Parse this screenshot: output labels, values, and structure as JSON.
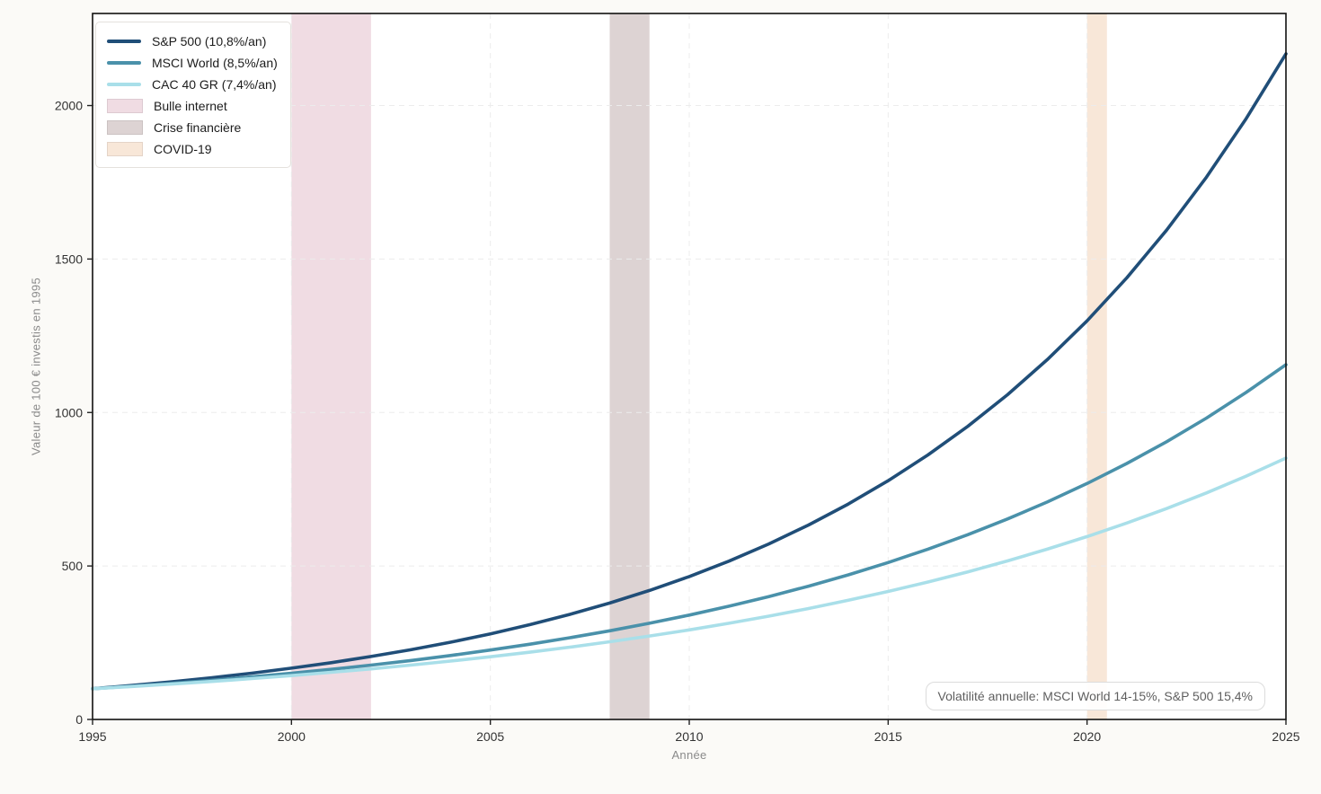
{
  "figure": {
    "background": "#fbfaf7",
    "plot_background": "#ffffff",
    "spine_color": "#111111",
    "grid_color": "#ececec",
    "tick_label_color": "#333333",
    "axis_label_color": "#8a8a8a"
  },
  "chart_data": {
    "type": "line",
    "title": "",
    "xlabel": "Année",
    "ylabel": "Valeur de 100 € investis en 1995",
    "xlim": [
      1995,
      2025
    ],
    "ylim": [
      0,
      2300
    ],
    "xticks": [
      1995,
      2000,
      2005,
      2010,
      2015,
      2020,
      2025
    ],
    "yticks": [
      0,
      500,
      1000,
      1500,
      2000
    ],
    "grid": "dashed-light",
    "legend_position": "upper-left",
    "x": [
      1995,
      1996,
      1997,
      1998,
      1999,
      2000,
      2001,
      2002,
      2003,
      2004,
      2005,
      2006,
      2007,
      2008,
      2009,
      2010,
      2011,
      2012,
      2013,
      2014,
      2015,
      2016,
      2017,
      2018,
      2019,
      2020,
      2021,
      2022,
      2023,
      2024,
      2025
    ],
    "series": [
      {
        "name": "S&P 500 (10,8%/an)",
        "annual_return_pct": "10,8",
        "color": "#204e78",
        "values": [
          100,
          110.8,
          122.8,
          136.0,
          150.7,
          167.0,
          185.0,
          205.0,
          227.2,
          251.7,
          278.9,
          309.0,
          342.4,
          379.3,
          420.3,
          465.7,
          516.0,
          571.7,
          633.5,
          701.9,
          777.7,
          861.7,
          954.7,
          1057.9,
          1172.1,
          1298.7,
          1438.9,
          1594.3,
          1766.5,
          1957.3,
          2168.7
        ]
      },
      {
        "name": "MSCI World (8,5%/an)",
        "annual_return_pct": "8,5",
        "color": "#4a91aa",
        "values": [
          100,
          108.5,
          117.7,
          127.7,
          138.6,
          150.4,
          163.2,
          177.0,
          192.1,
          208.4,
          226.1,
          245.3,
          266.2,
          288.8,
          313.3,
          340.0,
          368.9,
          400.2,
          434.3,
          471.2,
          511.2,
          554.7,
          601.8,
          653.0,
          708.5,
          768.7,
          834.0,
          904.9,
          981.8,
          1065.3,
          1155.8
        ]
      },
      {
        "name": "CAC 40 GR (7,4%/an)",
        "annual_return_pct": "7,4",
        "color": "#a9dfe9",
        "values": [
          100,
          107.4,
          115.4,
          123.9,
          133.1,
          142.9,
          153.5,
          164.8,
          177.0,
          190.1,
          204.2,
          219.3,
          235.5,
          253.0,
          271.7,
          291.8,
          313.4,
          336.6,
          361.5,
          388.2,
          417.0,
          447.8,
          480.9,
          516.5,
          554.8,
          595.8,
          639.9,
          687.2,
          738.1,
          792.7,
          851.4
        ]
      }
    ],
    "bands": [
      {
        "label": "Bulle internet",
        "from": 2000,
        "to": 2002,
        "color": "#f0dce3"
      },
      {
        "label": "Crise financière",
        "from": 2008,
        "to": 2009,
        "color": "#ddd3d3"
      },
      {
        "label": "COVID-19",
        "from": 2020,
        "to": 2020.5,
        "color": "#f8e7d8"
      }
    ],
    "annotation": "Volatilité annuelle: MSCI World 14-15%, S&P 500 15,4%"
  }
}
